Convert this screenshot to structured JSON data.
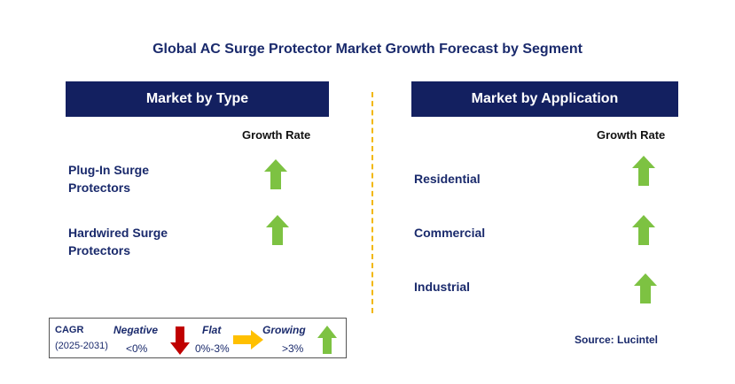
{
  "title": "Global AC Surge Protector Market Growth Forecast by Segment",
  "left_panel": {
    "header": "Market by Type",
    "growth_label": "Growth Rate",
    "rows": [
      {
        "label_line1": "Plug-In Surge",
        "label_line2": "Protectors",
        "trend": "growing"
      },
      {
        "label_line1": "Hardwired Surge",
        "label_line2": "Protectors",
        "trend": "growing"
      }
    ]
  },
  "right_panel": {
    "header": "Market by Application",
    "growth_label": "Growth Rate",
    "rows": [
      {
        "label": "Residential",
        "trend": "growing"
      },
      {
        "label": "Commercial",
        "trend": "growing"
      },
      {
        "label": "Industrial",
        "trend": "growing"
      }
    ]
  },
  "legend": {
    "cagr": "CAGR",
    "years": "(2025-2031)",
    "negative_label": "Negative",
    "negative_value": "<0%",
    "flat_label": "Flat",
    "flat_value": "0%-3%",
    "growing_label": "Growing",
    "growing_value": ">3%"
  },
  "source": "Source: Lucintel",
  "colors": {
    "header_bg": "#132060",
    "growing": "#7dc242",
    "negative": "#c00000",
    "flat": "#ffc000",
    "divider": "#f2b705"
  }
}
